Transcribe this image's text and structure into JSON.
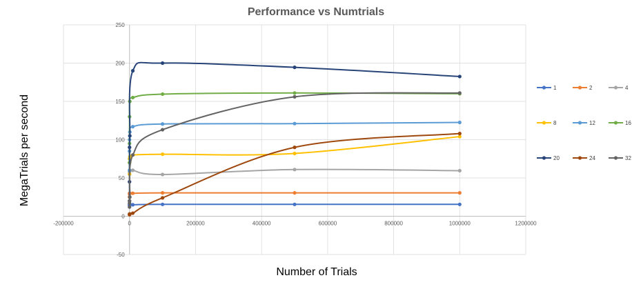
{
  "chart_data": {
    "type": "scatter",
    "title": "Performance vs Numtrials",
    "xlabel": "Number of Trials",
    "ylabel": "MegaTrials per second",
    "xlim": [
      -200000,
      1200000
    ],
    "ylim": [
      -50,
      250
    ],
    "xticks": [
      -200000,
      0,
      200000,
      400000,
      600000,
      800000,
      1000000,
      1200000
    ],
    "yticks": [
      -50,
      0,
      50,
      100,
      150,
      200,
      250
    ],
    "grid": true,
    "smooth_lines": true,
    "legend_position": "right",
    "x": [
      1,
      10,
      100,
      1000,
      10000,
      100000,
      500000,
      1000000
    ],
    "series": [
      {
        "name": "1",
        "color": "#4472C4",
        "values": [
          14,
          15,
          15,
          15,
          15,
          15.5,
          15.5,
          15.5
        ]
      },
      {
        "name": "2",
        "color": "#ED7D31",
        "values": [
          25,
          29,
          30,
          30,
          30,
          30.5,
          30.5,
          30.5
        ]
      },
      {
        "name": "4",
        "color": "#A5A5A5",
        "values": [
          45,
          55,
          58,
          60,
          60,
          54.5,
          61,
          59.5
        ]
      },
      {
        "name": "8",
        "color": "#FFC000",
        "values": [
          55,
          70,
          75,
          78,
          80,
          81,
          82,
          104
        ]
      },
      {
        "name": "12",
        "color": "#5B9BD5",
        "values": [
          60,
          85,
          100,
          110,
          117,
          120.5,
          121,
          122.5
        ]
      },
      {
        "name": "16",
        "color": "#70AD47",
        "values": [
          70,
          95,
          130,
          150,
          155,
          159.5,
          161,
          160
        ]
      },
      {
        "name": "20",
        "color": "#264478",
        "values": [
          20,
          45,
          90,
          105,
          190,
          200,
          194.5,
          182.5
        ]
      },
      {
        "name": "24",
        "color": "#9E480E",
        "values": [
          2,
          2.5,
          3,
          3,
          4,
          24,
          90,
          108
        ]
      },
      {
        "name": "32",
        "color": "#636363",
        "values": [
          12,
          17,
          20,
          25,
          80,
          113,
          156,
          161
        ]
      }
    ]
  }
}
